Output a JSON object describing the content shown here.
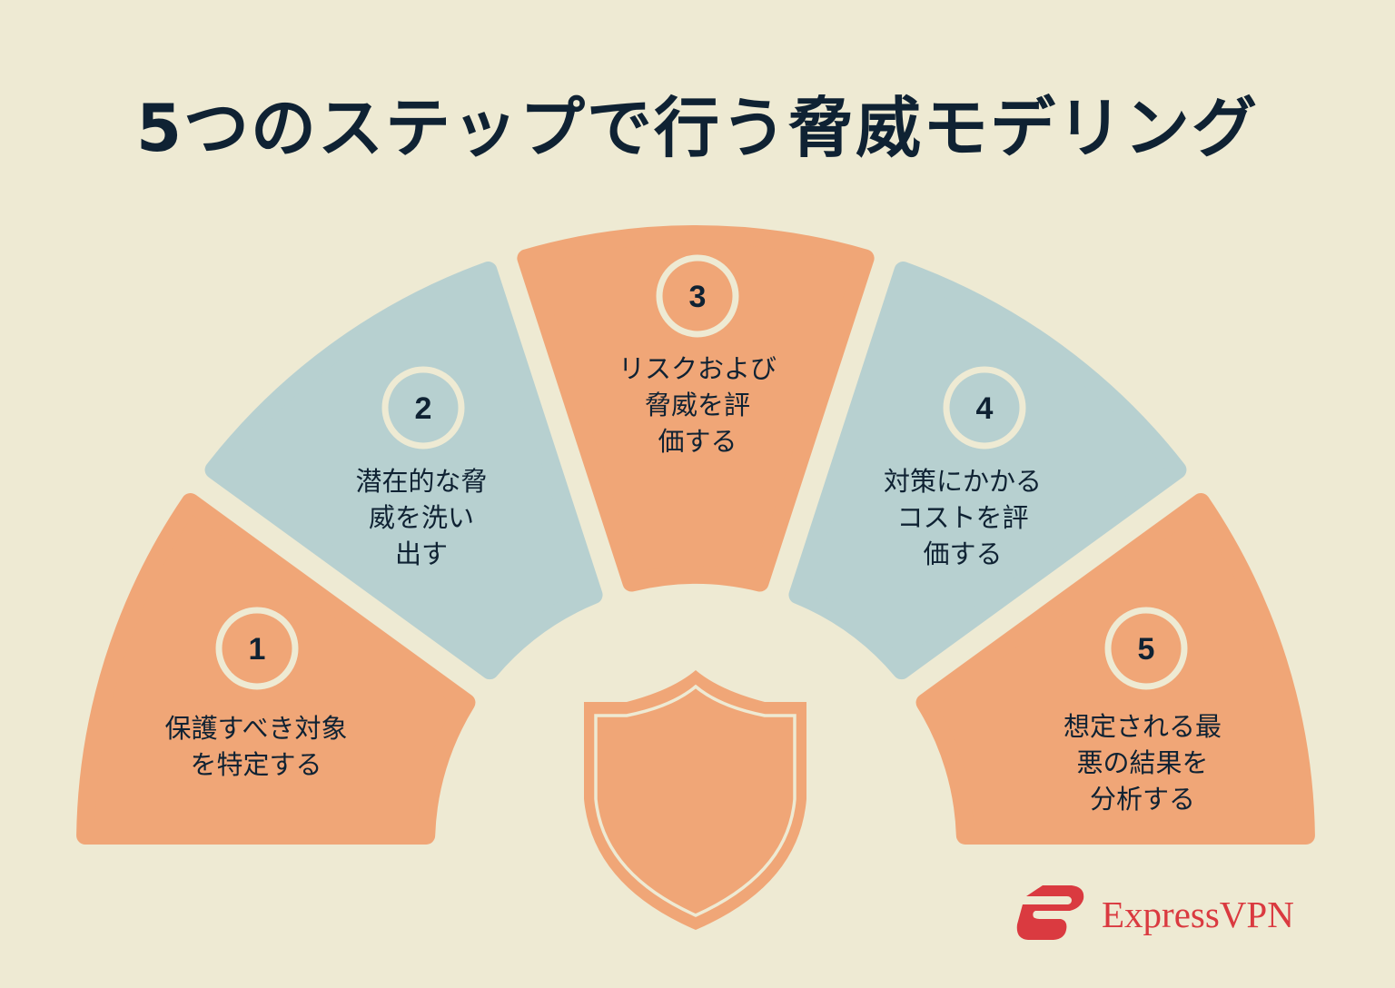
{
  "title": "5つのステップで行う脅威モデリング",
  "colors": {
    "background": "#EEEAD3",
    "orange": "#F0A677",
    "blue": "#B7D0D0",
    "text": "#0F2233",
    "brand": "#DA3A40"
  },
  "steps": [
    {
      "number": "1",
      "lines": [
        "保護すべき対象",
        "を特定する"
      ],
      "color": "orange"
    },
    {
      "number": "2",
      "lines": [
        "潜在的な脅",
        "威を洗い",
        "出す"
      ],
      "color": "blue"
    },
    {
      "number": "3",
      "lines": [
        "リスクおよび",
        "脅威を評",
        "価する"
      ],
      "color": "orange"
    },
    {
      "number": "4",
      "lines": [
        "対策にかかる",
        "コストを評",
        "価する"
      ],
      "color": "blue"
    },
    {
      "number": "5",
      "lines": [
        "想定される最",
        "悪の結果を",
        "分析する"
      ],
      "color": "orange"
    }
  ],
  "center_icon": "shield-icon",
  "logo": {
    "text": "ExpressVPN",
    "icon": "expressvpn-logo-icon"
  }
}
